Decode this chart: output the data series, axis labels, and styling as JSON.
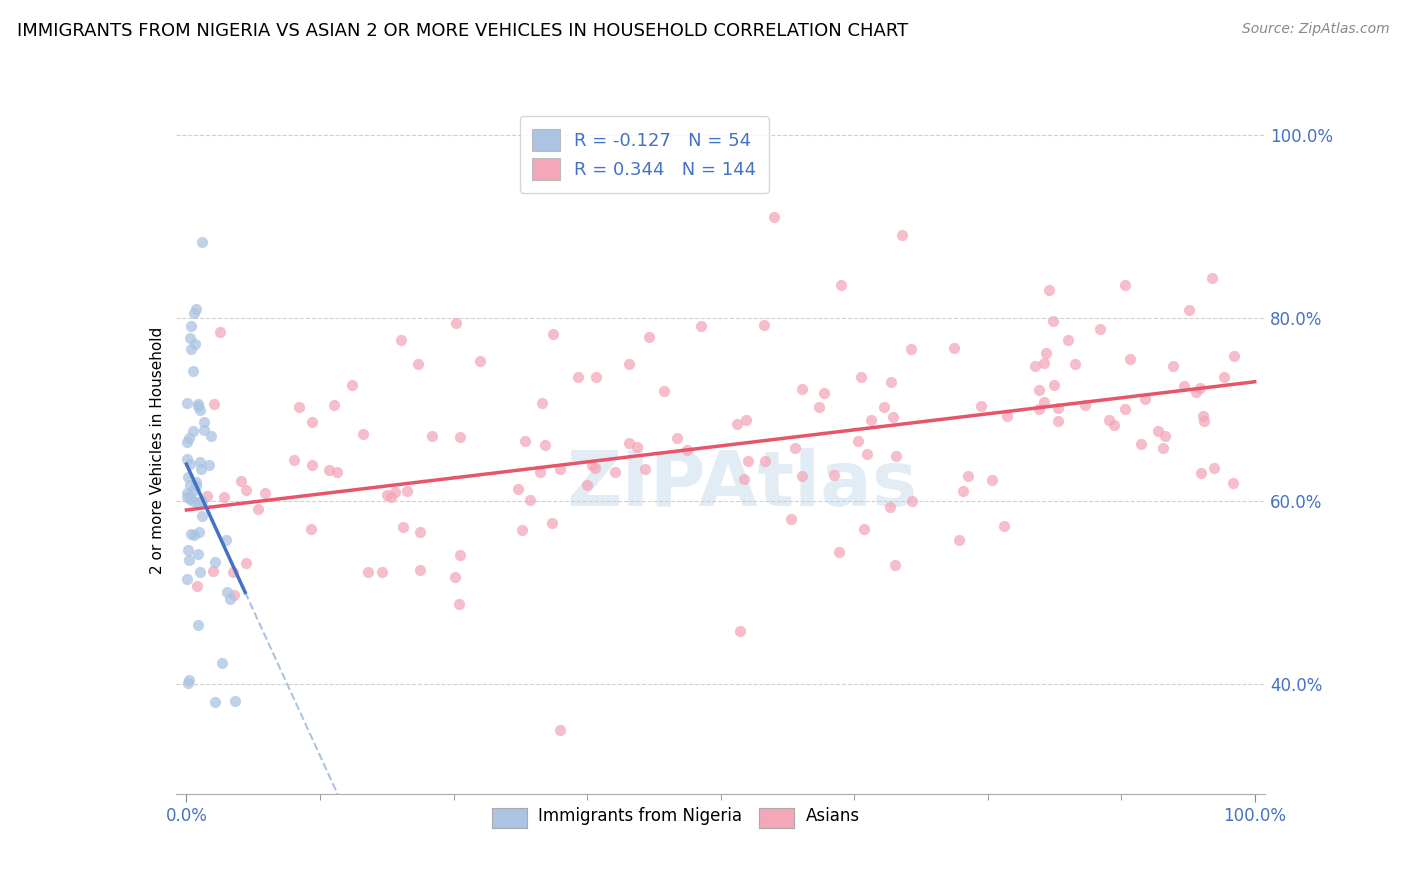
{
  "title": "IMMIGRANTS FROM NIGERIA VS ASIAN 2 OR MORE VEHICLES IN HOUSEHOLD CORRELATION CHART",
  "source": "Source: ZipAtlas.com",
  "ylabel": "2 or more Vehicles in Household",
  "r1": -0.127,
  "n1": 54,
  "r2": 0.344,
  "n2": 144,
  "color_nigeria": "#aac4e2",
  "color_asian": "#f4a7b9",
  "line_color_nigeria": "#4472c4",
  "line_color_asian": "#e8546a",
  "dashed_color": "#99b5d8",
  "watermark_color": "#b8d0e8",
  "legend_label1": "Immigrants from Nigeria",
  "legend_label2": "Asians",
  "grid_color": "#d0d0d0",
  "spine_color": "#cccccc",
  "tick_label_color": "#4472c4",
  "title_fontsize": 13,
  "source_fontsize": 10,
  "tick_fontsize": 12,
  "legend_fontsize": 13,
  "ylabel_fontsize": 11,
  "watermark_fontsize": 55,
  "scatter_size": 65,
  "scatter_alpha": 0.75
}
